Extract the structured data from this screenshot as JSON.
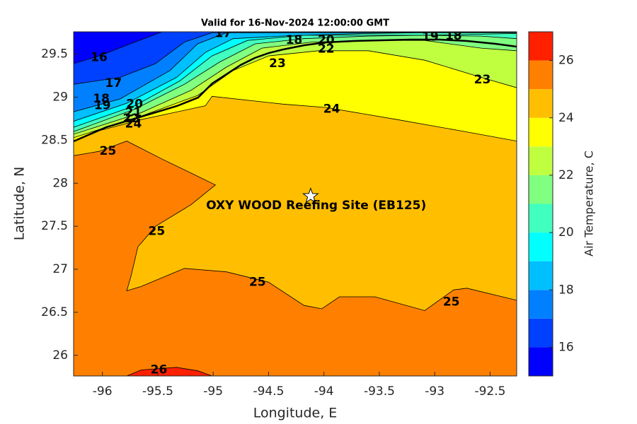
{
  "chart_data": {
    "type": "contour",
    "title": "Valid for 16-Nov-2024 12:00:00 GMT",
    "xlabel": "Longitude, E",
    "ylabel": "Latitude, N",
    "xlim": [
      -96.26,
      -92.26
    ],
    "ylim": [
      25.76,
      29.76
    ],
    "xticks": [
      -96,
      -95.5,
      -95,
      -94.5,
      -94,
      -93.5,
      -93,
      -92.5
    ],
    "yticks": [
      26,
      26.5,
      27,
      27.5,
      28,
      28.5,
      29,
      29.5
    ],
    "colorbar": {
      "label": "Air Temperature, C",
      "lim": [
        15,
        27
      ],
      "ticks": [
        16,
        18,
        20,
        22,
        24,
        26
      ],
      "colors": [
        "#0000ff",
        "#0040ff",
        "#0080ff",
        "#00bfff",
        "#00ffff",
        "#40ffbf",
        "#80ff80",
        "#bfff40",
        "#ffff00",
        "#ffbf00",
        "#ff8000",
        "#ff2000"
      ]
    },
    "contours": [
      {
        "level": 16,
        "x": [
          -96.26,
          -96.03,
          -95.71,
          -95.46,
          -92.26
        ],
        "y": [
          29.39,
          29.48,
          29.64,
          29.76,
          29.76
        ]
      },
      {
        "level": 17,
        "x": [
          -96.26,
          -95.84,
          -95.52,
          -95.26,
          -95.01,
          -92.26
        ],
        "y": [
          29.15,
          29.23,
          29.39,
          29.64,
          29.75,
          29.75
        ]
      },
      {
        "level": 18,
        "x": [
          -96.26,
          -95.84,
          -95.39,
          -95.14,
          -94.88,
          -93.09,
          -92.26
        ],
        "y": [
          28.83,
          28.98,
          29.31,
          29.62,
          29.75,
          29.75,
          29.75
        ]
      },
      {
        "level": 19,
        "x": [
          -96.26,
          -95.78,
          -95.33,
          -95.07,
          -94.82,
          -94.24,
          -93.09,
          -92.26
        ],
        "y": [
          28.72,
          28.93,
          29.23,
          29.52,
          29.68,
          29.72,
          29.72,
          29.74
        ]
      },
      {
        "level": 20,
        "x": [
          -96.26,
          -95.71,
          -95.3,
          -95.01,
          -94.69,
          -94.18,
          -93.6,
          -93.09,
          -92.26
        ],
        "y": [
          28.65,
          28.9,
          29.19,
          29.48,
          29.66,
          29.72,
          29.74,
          29.75,
          29.75
        ]
      },
      {
        "level": 21,
        "x": [
          -96.26,
          -95.71,
          -95.26,
          -94.94,
          -94.62,
          -94.18,
          -93.6,
          -93.09,
          -92.58,
          -92.26
        ],
        "y": [
          28.6,
          28.86,
          29.15,
          29.41,
          29.62,
          29.68,
          29.71,
          29.72,
          29.71,
          29.68
        ]
      },
      {
        "level": 22,
        "x": [
          -96.26,
          -95.65,
          -95.2,
          -94.88,
          -94.56,
          -94.11,
          -93.6,
          -93.09,
          -92.58,
          -92.26
        ],
        "y": [
          28.57,
          28.82,
          29.08,
          29.35,
          29.57,
          29.64,
          29.66,
          29.66,
          29.57,
          29.54
        ]
      },
      {
        "level": 23,
        "x": [
          -96.26,
          -95.65,
          -95.14,
          -94.82,
          -94.5,
          -94.05,
          -93.6,
          -93.09,
          -92.58,
          -92.26
        ],
        "y": [
          28.53,
          28.78,
          29.02,
          29.31,
          29.48,
          29.54,
          29.54,
          29.43,
          29.23,
          29.11
        ]
      },
      {
        "level": 24,
        "x": [
          -96.26,
          -96.03,
          -95.65,
          -95.07,
          -95.01,
          -94.37,
          -93.98,
          -93.34,
          -92.77,
          -92.26
        ],
        "y": [
          28.49,
          28.61,
          28.74,
          28.9,
          29.01,
          28.92,
          28.88,
          28.74,
          28.61,
          28.49
        ]
      },
      {
        "level": 25,
        "x": [
          -96.26,
          -96.03,
          -95.78,
          -95.46,
          -95.14,
          -94.98,
          -95.2,
          -95.52,
          -95.68,
          -95.74,
          -95.78,
          -95.65,
          -95.26,
          -94.88,
          -94.5,
          -94.18,
          -94.02,
          -93.86,
          -93.54,
          -93.09,
          -92.83,
          -92.71,
          -92.26
        ],
        "y": [
          28.32,
          28.37,
          28.49,
          28.28,
          28.08,
          27.98,
          27.75,
          27.5,
          27.26,
          26.93,
          26.75,
          26.8,
          27.01,
          26.97,
          26.85,
          26.58,
          26.54,
          26.68,
          26.68,
          26.52,
          26.76,
          26.78,
          26.64
        ]
      },
      {
        "level": 26,
        "x": [
          -95.78,
          -95.65,
          -95.33,
          -95.14,
          -95.01
        ],
        "y": [
          25.76,
          25.83,
          25.86,
          25.82,
          25.76
        ]
      }
    ],
    "contour_labels": [
      {
        "value": 16,
        "x": -96.03,
        "y": 29.46
      },
      {
        "value": 17,
        "x": -95.9,
        "y": 29.16
      },
      {
        "value": 18,
        "x": -96.01,
        "y": 28.98
      },
      {
        "value": 19,
        "x": -96.0,
        "y": 28.9
      },
      {
        "value": 20,
        "x": -95.71,
        "y": 28.92
      },
      {
        "value": 21,
        "x": -95.72,
        "y": 28.82
      },
      {
        "value": 22,
        "x": -95.74,
        "y": 28.75
      },
      {
        "value": 24,
        "x": -95.72,
        "y": 28.69
      },
      {
        "value": 17,
        "x": -94.91,
        "y": 29.74
      },
      {
        "value": 18,
        "x": -94.27,
        "y": 29.66
      },
      {
        "value": 20,
        "x": -93.98,
        "y": 29.66
      },
      {
        "value": 22,
        "x": -93.98,
        "y": 29.56
      },
      {
        "value": 19,
        "x": -93.04,
        "y": 29.7
      },
      {
        "value": 18,
        "x": -92.83,
        "y": 29.71
      },
      {
        "value": 23,
        "x": -94.42,
        "y": 29.39
      },
      {
        "value": 24,
        "x": -93.93,
        "y": 28.86
      },
      {
        "value": 23,
        "x": -92.57,
        "y": 29.2
      },
      {
        "value": 25,
        "x": -95.95,
        "y": 28.37
      },
      {
        "value": 25,
        "x": -95.51,
        "y": 27.44
      },
      {
        "value": 25,
        "x": -94.6,
        "y": 26.85
      },
      {
        "value": 25,
        "x": -92.85,
        "y": 26.62
      },
      {
        "value": 26,
        "x": -95.49,
        "y": 25.83
      }
    ],
    "site": {
      "name": "OXY WOOD Reefing Site (EB125)",
      "x": -94.12,
      "y": 27.85,
      "label_x": -94.07,
      "label_y": 27.74
    }
  }
}
